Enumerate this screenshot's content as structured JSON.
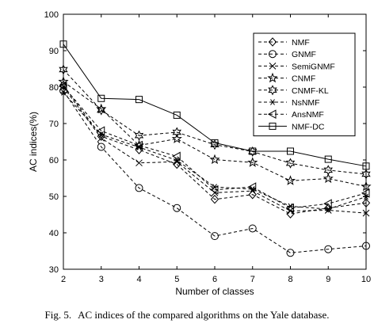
{
  "caption": {
    "label": "Fig. 5.",
    "text": "AC indices of the compared algorithms on the Yale database."
  },
  "chart_data": {
    "type": "line",
    "title": "",
    "xlabel": "Number of classes",
    "ylabel": "AC indices(%)",
    "x": [
      2,
      3,
      4,
      5,
      6,
      7,
      8,
      9,
      10
    ],
    "xlim": [
      2,
      10
    ],
    "ylim": [
      30,
      100
    ],
    "xticks": [
      "2",
      "3",
      "4",
      "5",
      "6",
      "7",
      "8",
      "9",
      "10"
    ],
    "yticks": [
      "30",
      "40",
      "50",
      "60",
      "70",
      "80",
      "90",
      "100"
    ],
    "grid": false,
    "legend_position": "top-right",
    "series": [
      {
        "name": "NMF",
        "marker": "diamond",
        "dash": "dashed",
        "values": [
          80.5,
          66.5,
          62.8,
          58.8,
          49.2,
          50.5,
          45.2,
          46.8,
          48.2
        ]
      },
      {
        "name": "GNMF",
        "marker": "circle",
        "dash": "dashed",
        "values": [
          79.0,
          63.6,
          52.3,
          46.8,
          39.1,
          41.2,
          34.5,
          35.5,
          36.4
        ]
      },
      {
        "name": "SemiGNMF",
        "marker": "x",
        "dash": "dashed",
        "values": [
          80.0,
          66.0,
          59.2,
          59.5,
          51.0,
          51.5,
          46.0,
          46.2,
          45.4
        ]
      },
      {
        "name": "CNMF",
        "marker": "pentagram",
        "dash": "dashed",
        "values": [
          81.5,
          74.0,
          64.0,
          65.8,
          60.1,
          59.3,
          54.3,
          54.9,
          52.7
        ]
      },
      {
        "name": "CNMF-KL",
        "marker": "hexagram",
        "dash": "dashed",
        "values": [
          84.8,
          73.7,
          66.7,
          67.6,
          64.2,
          62.3,
          59.1,
          57.2,
          56.1
        ]
      },
      {
        "name": "NsNMF",
        "marker": "asterisk",
        "dash": "dashed",
        "values": [
          78.5,
          67.0,
          63.5,
          59.9,
          52.6,
          52.0,
          47.3,
          46.5,
          49.9
        ]
      },
      {
        "name": "AnsNMF",
        "marker": "triangle-left",
        "dash": "dashed",
        "values": [
          80.2,
          68.0,
          64.0,
          61.0,
          51.8,
          52.6,
          46.8,
          48.0,
          50.9
        ]
      },
      {
        "name": "NMF-DC",
        "marker": "square",
        "dash": "solid",
        "values": [
          91.8,
          76.9,
          76.6,
          72.3,
          64.7,
          62.4,
          62.4,
          60.2,
          58.3
        ]
      }
    ]
  }
}
